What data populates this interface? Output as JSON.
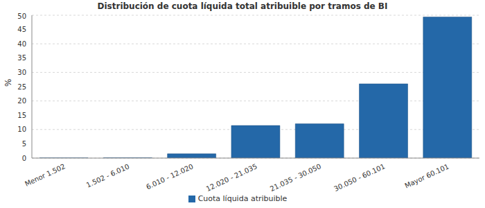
{
  "chart_data": {
    "type": "bar",
    "title": "Distribución de cuota líquida total atribuible por tramos de BI",
    "y_label": "%",
    "categories": [
      "Menor 1.502",
      "1.502 - 6.010",
      "6.010 - 12.020",
      "12.020 - 21.035",
      "21.035 - 30.050",
      "30.050 - 60.101",
      "Mayor 60.101"
    ],
    "series": [
      {
        "name": "Cuota líquida atribuible",
        "color": "#2468a8",
        "values": [
          0.05,
          0.1,
          1.5,
          11.4,
          12.0,
          26.0,
          49.4
        ]
      }
    ],
    "ylim": [
      0,
      50
    ],
    "yticks": [
      0,
      5,
      10,
      15,
      20,
      25,
      30,
      35,
      40,
      45,
      50
    ],
    "grid": true,
    "legend": "bottom"
  }
}
